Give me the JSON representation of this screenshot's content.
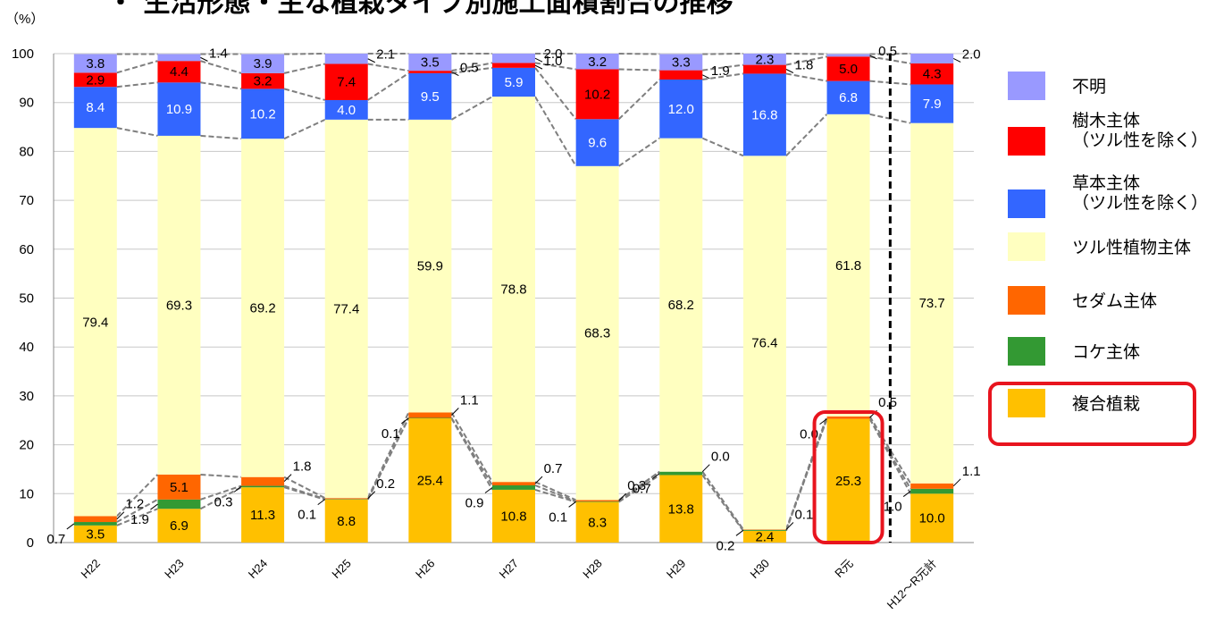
{
  "title": "・ 生活形態・主な植栽タイプ別施工面積割合の推移",
  "y_unit": "（%）",
  "colors": {
    "unknown": "#9999ff",
    "tree": "#ff0000",
    "herb": "#3366ff",
    "vine": "#ffffc0",
    "sedum": "#ff6600",
    "moss": "#339933",
    "mixed": "#ffc000",
    "highlight": "#e8141e"
  },
  "legend": [
    {
      "key": "unknown",
      "label": "不明"
    },
    {
      "key": "tree",
      "label": "樹木主体\n（ツル性を除く）"
    },
    {
      "key": "herb",
      "label": "草本主体\n（ツル性を除く）"
    },
    {
      "key": "vine",
      "label": "ツル性植物主体"
    },
    {
      "key": "sedum",
      "label": "セダム主体"
    },
    {
      "key": "moss",
      "label": "コケ主体"
    },
    {
      "key": "mixed",
      "label": "複合植栽"
    }
  ],
  "chart_data": {
    "type": "bar",
    "stacked": true,
    "ylim": [
      0,
      100
    ],
    "yticks": [
      0,
      10,
      20,
      30,
      40,
      50,
      60,
      70,
      80,
      90,
      100
    ],
    "categories": [
      "H22",
      "H23",
      "H24",
      "H25",
      "H26",
      "H27",
      "H28",
      "H29",
      "H30",
      "R元",
      "H12～R元計"
    ],
    "series": [
      {
        "name": "複合植栽",
        "key": "mixed",
        "values": [
          3.5,
          6.9,
          11.3,
          8.8,
          25.4,
          10.8,
          8.3,
          13.8,
          2.4,
          25.3,
          10.0
        ]
      },
      {
        "name": "コケ主体",
        "key": "moss",
        "values": [
          0.7,
          1.9,
          0.3,
          0.1,
          0.1,
          0.9,
          0.1,
          0.7,
          0.2,
          0.0,
          1.0
        ]
      },
      {
        "name": "セダム主体",
        "key": "sedum",
        "values": [
          1.2,
          5.1,
          1.8,
          0.2,
          1.1,
          0.7,
          0.3,
          0.0,
          0.1,
          0.5,
          1.1
        ]
      },
      {
        "name": "ツル性植物主体",
        "key": "vine",
        "values": [
          79.4,
          69.3,
          69.2,
          77.4,
          59.9,
          78.8,
          68.3,
          68.2,
          76.4,
          61.8,
          73.7
        ]
      },
      {
        "name": "草本主体（ツル性を除く）",
        "key": "herb",
        "values": [
          8.4,
          10.9,
          10.2,
          4.0,
          9.5,
          5.9,
          9.6,
          12.0,
          16.8,
          6.8,
          7.9
        ]
      },
      {
        "name": "樹木主体（ツル性を除く）",
        "key": "tree",
        "values": [
          2.9,
          4.4,
          3.2,
          7.4,
          0.5,
          1.0,
          10.2,
          1.9,
          1.8,
          5.0,
          4.3
        ]
      },
      {
        "name": "不明",
        "key": "unknown",
        "values": [
          3.8,
          1.4,
          3.9,
          2.1,
          3.5,
          2.0,
          3.2,
          3.3,
          2.3,
          0.5,
          2.0
        ]
      }
    ],
    "highlight_category": "R元",
    "separator_after_category": "R元"
  }
}
